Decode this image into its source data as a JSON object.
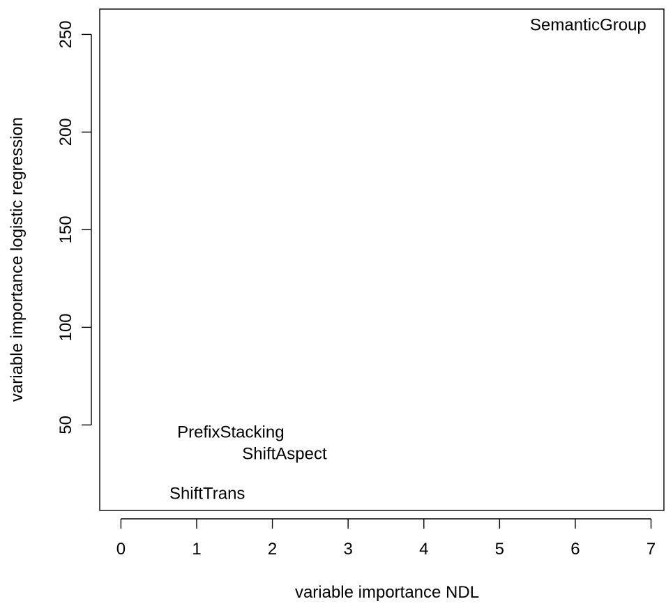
{
  "chart_data": {
    "type": "scatter",
    "title": "",
    "xlabel": "variable importance NDL",
    "ylabel": "variable importance logistic regression",
    "xlim": [
      -0.28,
      7.17
    ],
    "ylim": [
      6.2,
      263.0
    ],
    "x_ticks": [
      0,
      1,
      2,
      3,
      4,
      5,
      6,
      7
    ],
    "y_ticks": [
      50,
      100,
      150,
      200,
      250
    ],
    "grid": false,
    "legend": "none",
    "marker": "text-label",
    "points": [
      {
        "label": "SemanticGroup",
        "x": 6.17,
        "y": 254.7
      },
      {
        "label": "PrefixStacking",
        "x": 1.45,
        "y": 46.2
      },
      {
        "label": "ShiftAspect",
        "x": 2.16,
        "y": 35.2
      },
      {
        "label": "ShiftTrans",
        "x": 1.14,
        "y": 14.7
      }
    ]
  }
}
